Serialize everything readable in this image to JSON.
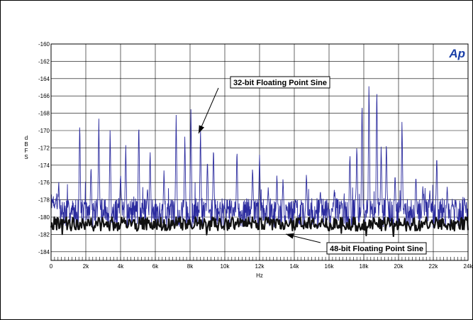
{
  "chart_data": {
    "type": "line",
    "title": "",
    "xlabel": "Hz",
    "ylabel": "d B F S",
    "xlim": [
      0,
      24000
    ],
    "ylim": [
      -185,
      -160
    ],
    "x_ticks": [
      0,
      2000,
      4000,
      6000,
      8000,
      10000,
      12000,
      14000,
      16000,
      18000,
      20000,
      22000,
      24000
    ],
    "x_tick_labels": [
      "0",
      "2k",
      "4k",
      "6k",
      "8k",
      "10k",
      "12k",
      "14k",
      "16k",
      "18k",
      "20k",
      "22k",
      "24k"
    ],
    "y_ticks": [
      -160,
      -162,
      -164,
      -166,
      -168,
      -170,
      -172,
      -174,
      -176,
      -178,
      -180,
      -182,
      -184
    ],
    "y_tick_labels": [
      "-160",
      "-162",
      "-164",
      "-166",
      "-168",
      "-170",
      "-172",
      "-174",
      "-176",
      "-178",
      "-180",
      "-182",
      "-184"
    ],
    "grid": true,
    "logo": "Ap",
    "colors": {
      "series_32bit": "#2b2b9e",
      "series_48bit": "#111111",
      "grid": "#000000"
    },
    "series": [
      {
        "name": "32-bit Floating Point Sine",
        "baseline": -179.5,
        "peaks": [
          {
            "x": 440,
            "y": -175.8
          },
          {
            "x": 1000,
            "y": -178.0
          },
          {
            "x": 1650,
            "y": -168.5
          },
          {
            "x": 2300,
            "y": -173.8
          },
          {
            "x": 2750,
            "y": -168.5
          },
          {
            "x": 3400,
            "y": -169.5
          },
          {
            "x": 4000,
            "y": -174.8
          },
          {
            "x": 4300,
            "y": -171.5
          },
          {
            "x": 5050,
            "y": -168.5
          },
          {
            "x": 5550,
            "y": -176.5
          },
          {
            "x": 5700,
            "y": -172.0
          },
          {
            "x": 6500,
            "y": -174.5
          },
          {
            "x": 7200,
            "y": -168.2
          },
          {
            "x": 7700,
            "y": -170.5
          },
          {
            "x": 8050,
            "y": -167.4
          },
          {
            "x": 8600,
            "y": -169.5
          },
          {
            "x": 9000,
            "y": -173.0
          },
          {
            "x": 9350,
            "y": -171.5
          },
          {
            "x": 10000,
            "y": -178.8
          },
          {
            "x": 10700,
            "y": -171.8
          },
          {
            "x": 11600,
            "y": -174.0
          },
          {
            "x": 12000,
            "y": -172.8
          },
          {
            "x": 12500,
            "y": -176.5
          },
          {
            "x": 13000,
            "y": -175.0
          },
          {
            "x": 13350,
            "y": -175.5
          },
          {
            "x": 14100,
            "y": -178.0
          },
          {
            "x": 14700,
            "y": -174.8
          },
          {
            "x": 15500,
            "y": -176.8
          },
          {
            "x": 16300,
            "y": -176.8
          },
          {
            "x": 16700,
            "y": -178.0
          },
          {
            "x": 17200,
            "y": -172.3
          },
          {
            "x": 17600,
            "y": -171.3
          },
          {
            "x": 17900,
            "y": -165.8
          },
          {
            "x": 18300,
            "y": -163.8
          },
          {
            "x": 18750,
            "y": -164.2
          },
          {
            "x": 19000,
            "y": -171.5
          },
          {
            "x": 19300,
            "y": -170.8
          },
          {
            "x": 19800,
            "y": -174.8
          },
          {
            "x": 20200,
            "y": -168.5
          },
          {
            "x": 21000,
            "y": -175.0
          },
          {
            "x": 21400,
            "y": -176.3
          },
          {
            "x": 21800,
            "y": -176.8
          },
          {
            "x": 22200,
            "y": -172.5
          },
          {
            "x": 22800,
            "y": -176.5
          },
          {
            "x": 23300,
            "y": -178.0
          },
          {
            "x": 23800,
            "y": -177.8
          }
        ]
      },
      {
        "name": "48-bit Floating Point Sine",
        "baseline": -180.8,
        "peaks": []
      }
    ],
    "annotations": [
      {
        "text": "32-bit Floating Point Sine",
        "series": 0
      },
      {
        "text": "48-bit Floating Point Sine",
        "series": 1
      }
    ]
  }
}
